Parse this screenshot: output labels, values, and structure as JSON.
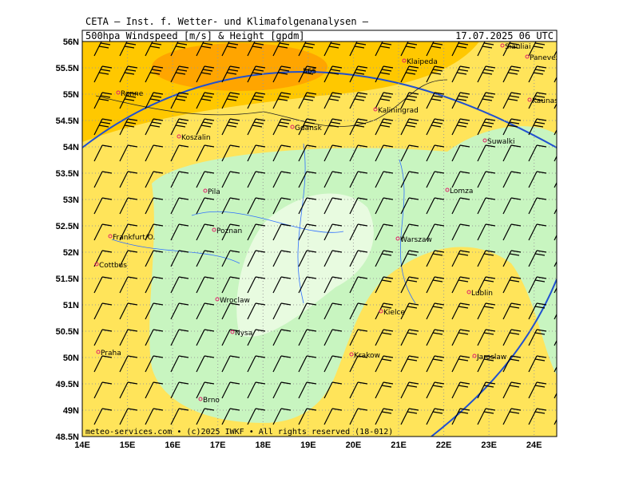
{
  "map": {
    "header": "CETA — Inst. f. Wetter- und Klimafolgenanalysen —",
    "title": "500hpa Windspeed [m/s] & Height [gpdm]",
    "date": "17.07.2025 06 UTC",
    "footer": "meteo-services.com • (c)2025 IWKF • All rights reserved (18-012)",
    "contour_label": "565",
    "xlim": [
      14,
      24.5
    ],
    "ylim": [
      48.5,
      56
    ],
    "xticks": [
      {
        "value": 14,
        "label": "14E"
      },
      {
        "value": 15,
        "label": "15E"
      },
      {
        "value": 16,
        "label": "16E"
      },
      {
        "value": 17,
        "label": "17E"
      },
      {
        "value": 18,
        "label": "18E"
      },
      {
        "value": 19,
        "label": "19E"
      },
      {
        "value": 20,
        "label": "20E"
      },
      {
        "value": 21,
        "label": "21E"
      },
      {
        "value": 22,
        "label": "22E"
      },
      {
        "value": 23,
        "label": "23E"
      },
      {
        "value": 24,
        "label": "24E"
      }
    ],
    "yticks": [
      {
        "value": 56,
        "label": "56N"
      },
      {
        "value": 55.5,
        "label": "55.5N"
      },
      {
        "value": 55,
        "label": "55N"
      },
      {
        "value": 54.5,
        "label": "54.5N"
      },
      {
        "value": 54,
        "label": "54N"
      },
      {
        "value": 53.5,
        "label": "53.5N"
      },
      {
        "value": 53,
        "label": "53N"
      },
      {
        "value": 52.5,
        "label": "52.5N"
      },
      {
        "value": 52,
        "label": "52N"
      },
      {
        "value": 51.5,
        "label": "51.5N"
      },
      {
        "value": 51,
        "label": "51N"
      },
      {
        "value": 50.5,
        "label": "50.5N"
      },
      {
        "value": 50,
        "label": "50N"
      },
      {
        "value": 49.5,
        "label": "49.5N"
      },
      {
        "value": 49,
        "label": "49N"
      },
      {
        "value": 48.5,
        "label": "48.5N"
      }
    ],
    "cities": [
      "Ronne",
      "Klaipeda",
      "Siauliai",
      "Panevezys",
      "Kaliningrad",
      "Gdansk",
      "Kaunas",
      "Koszalin",
      "Suwalki",
      "Pila",
      "Lomza",
      "Poznan",
      "Frankfurt/O.",
      "Warszaw",
      "Cottbus",
      "Wroclaw",
      "Lublin",
      "Kielce",
      "Nysa",
      "Praha",
      "Krakow",
      "Jaroslaw",
      "Brno"
    ]
  }
}
